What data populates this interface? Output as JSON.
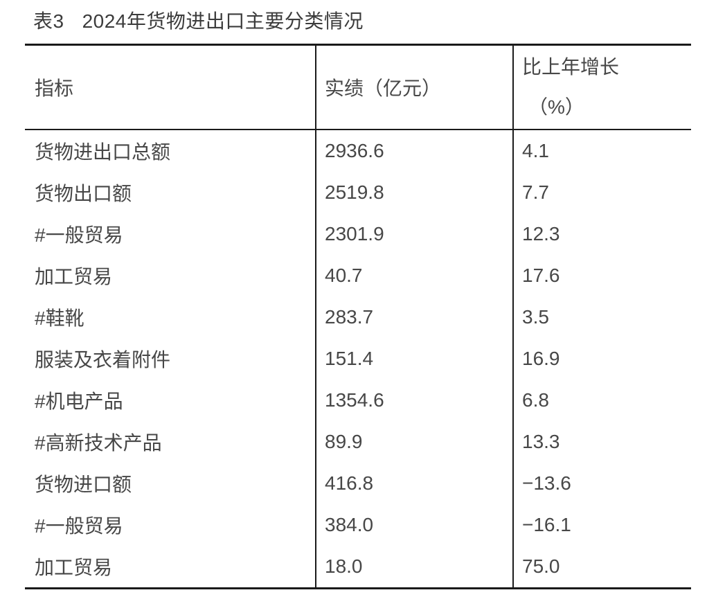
{
  "page": {
    "background": "#ffffff"
  },
  "title": {
    "label": "表3",
    "text": "2024年货物进出口主要分类情况"
  },
  "table": {
    "header": {
      "indicator": "指标",
      "value": "实绩（亿元）",
      "growth_line1": "比上年增长",
      "growth_line2": "（%）"
    },
    "rows": [
      {
        "indicator": "货物进出口总额",
        "value": "2936.6",
        "growth": "4.1"
      },
      {
        "indicator": "货物出口额",
        "value": "2519.8",
        "growth": "7.7"
      },
      {
        "indicator": "#一般贸易",
        "value": "2301.9",
        "growth": "12.3"
      },
      {
        "indicator": "加工贸易",
        "value": "40.7",
        "growth": "17.6"
      },
      {
        "indicator": "#鞋靴",
        "value": "283.7",
        "growth": "3.5"
      },
      {
        "indicator": "服装及衣着附件",
        "value": "151.4",
        "growth": "16.9"
      },
      {
        "indicator": "#机电产品",
        "value": "1354.6",
        "growth": "6.8"
      },
      {
        "indicator": "#高新技术产品",
        "value": "89.9",
        "growth": "13.3"
      },
      {
        "indicator": "货物进口额",
        "value": "416.8",
        "growth": "−13.6"
      },
      {
        "indicator": "#一般贸易",
        "value": "384.0",
        "growth": "−16.1"
      },
      {
        "indicator": "加工贸易",
        "value": "18.0",
        "growth": "75.0"
      }
    ]
  },
  "colors": {
    "text": "#474747",
    "title_text": "#3c3c3c",
    "border": "#1a1a1a",
    "background": "#ffffff"
  }
}
